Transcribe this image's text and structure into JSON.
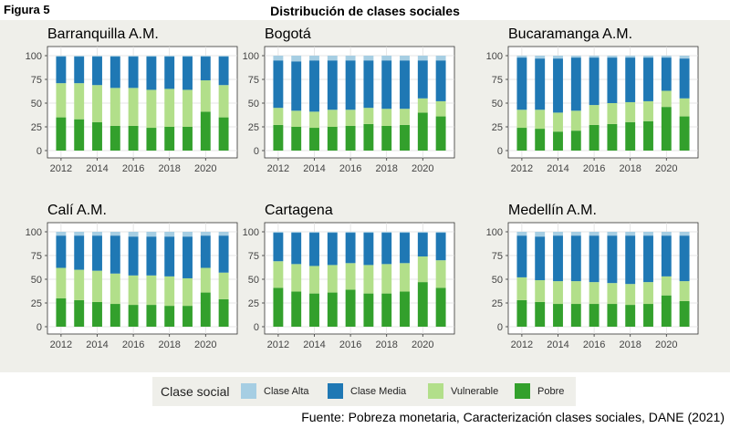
{
  "figure_label": "Figura 5",
  "title": "Distribución de clases sociales",
  "source": "Fuente: Pobreza monetaria, Caracterización clases sociales, DANE (2021)",
  "legend": {
    "title": "Clase social",
    "items": [
      {
        "label": "Clase Alta",
        "color": "#a6cee3"
      },
      {
        "label": "Clase Media",
        "color": "#1f78b4"
      },
      {
        "label": "Vulnerable",
        "color": "#b2df8a"
      },
      {
        "label": "Pobre",
        "color": "#33a02c"
      }
    ]
  },
  "chart_data": [
    {
      "type": "bar",
      "stacked": true,
      "title": "Barranquilla A.M.",
      "x": [
        2012,
        2013,
        2014,
        2015,
        2016,
        2017,
        2018,
        2019,
        2020,
        2021
      ],
      "xticks": [
        "2012",
        "2014",
        "2016",
        "2018",
        "2020"
      ],
      "yticks": [
        "0",
        "25",
        "50",
        "75",
        "100"
      ],
      "ylim": [
        0,
        100
      ],
      "series": [
        {
          "name": "Pobre",
          "values": [
            35,
            33,
            30,
            26,
            26,
            24,
            25,
            25,
            41,
            35
          ]
        },
        {
          "name": "Vulnerable",
          "values": [
            36,
            38,
            39,
            40,
            40,
            40,
            40,
            39,
            33,
            34
          ]
        },
        {
          "name": "Clase Media",
          "values": [
            28,
            28,
            30,
            33,
            33,
            35,
            34,
            35,
            25,
            30
          ]
        },
        {
          "name": "Clase Alta",
          "values": [
            1,
            1,
            1,
            1,
            1,
            1,
            1,
            1,
            1,
            1
          ]
        }
      ]
    },
    {
      "type": "bar",
      "stacked": true,
      "title": "Bogotá",
      "x": [
        2012,
        2013,
        2014,
        2015,
        2016,
        2017,
        2018,
        2019,
        2020,
        2021
      ],
      "xticks": [
        "2012",
        "2014",
        "2016",
        "2018",
        "2020"
      ],
      "yticks": [
        "0",
        "25",
        "50",
        "75",
        "100"
      ],
      "ylim": [
        0,
        100
      ],
      "series": [
        {
          "name": "Pobre",
          "values": [
            27,
            25,
            24,
            25,
            26,
            28,
            26,
            27,
            40,
            36
          ]
        },
        {
          "name": "Vulnerable",
          "values": [
            18,
            17,
            17,
            18,
            17,
            17,
            18,
            17,
            15,
            16
          ]
        },
        {
          "name": "Clase Media",
          "values": [
            50,
            52,
            54,
            52,
            52,
            50,
            51,
            51,
            40,
            43
          ]
        },
        {
          "name": "Clase Alta",
          "values": [
            5,
            6,
            5,
            5,
            5,
            5,
            5,
            5,
            5,
            5
          ]
        }
      ]
    },
    {
      "type": "bar",
      "stacked": true,
      "title": "Bucaramanga A.M.",
      "x": [
        2012,
        2013,
        2014,
        2015,
        2016,
        2017,
        2018,
        2019,
        2020,
        2021
      ],
      "xticks": [
        "2012",
        "2014",
        "2016",
        "2018",
        "2020"
      ],
      "yticks": [
        "0",
        "25",
        "50",
        "75",
        "100"
      ],
      "ylim": [
        0,
        100
      ],
      "series": [
        {
          "name": "Pobre",
          "values": [
            24,
            23,
            20,
            21,
            27,
            28,
            30,
            31,
            46,
            36
          ]
        },
        {
          "name": "Vulnerable",
          "values": [
            19,
            20,
            20,
            21,
            21,
            22,
            21,
            21,
            17,
            19
          ]
        },
        {
          "name": "Clase Media",
          "values": [
            55,
            54,
            57,
            56,
            50,
            48,
            47,
            46,
            35,
            42
          ]
        },
        {
          "name": "Clase Alta",
          "values": [
            2,
            3,
            3,
            2,
            2,
            2,
            2,
            2,
            2,
            3
          ]
        }
      ]
    },
    {
      "type": "bar",
      "stacked": true,
      "title": "Calí A.M.",
      "x": [
        2012,
        2013,
        2014,
        2015,
        2016,
        2017,
        2018,
        2019,
        2020,
        2021
      ],
      "xticks": [
        "2012",
        "2014",
        "2016",
        "2018",
        "2020"
      ],
      "yticks": [
        "0",
        "25",
        "50",
        "75",
        "100"
      ],
      "ylim": [
        0,
        100
      ],
      "series": [
        {
          "name": "Pobre",
          "values": [
            30,
            28,
            26,
            24,
            23,
            23,
            22,
            22,
            36,
            29
          ]
        },
        {
          "name": "Vulnerable",
          "values": [
            32,
            32,
            33,
            32,
            31,
            31,
            31,
            29,
            26,
            28
          ]
        },
        {
          "name": "Clase Media",
          "values": [
            34,
            36,
            37,
            40,
            41,
            41,
            42,
            44,
            34,
            39
          ]
        },
        {
          "name": "Clase Alta",
          "values": [
            4,
            4,
            4,
            4,
            5,
            5,
            5,
            5,
            4,
            4
          ]
        }
      ]
    },
    {
      "type": "bar",
      "stacked": true,
      "title": "Cartagena",
      "x": [
        2012,
        2013,
        2014,
        2015,
        2016,
        2017,
        2018,
        2019,
        2020,
        2021
      ],
      "xticks": [
        "2012",
        "2014",
        "2016",
        "2018",
        "2020"
      ],
      "yticks": [
        "0",
        "25",
        "50",
        "75",
        "100"
      ],
      "ylim": [
        0,
        100
      ],
      "series": [
        {
          "name": "Pobre",
          "values": [
            41,
            37,
            35,
            36,
            39,
            35,
            35,
            37,
            47,
            41
          ]
        },
        {
          "name": "Vulnerable",
          "values": [
            28,
            29,
            29,
            29,
            28,
            30,
            31,
            30,
            27,
            29
          ]
        },
        {
          "name": "Clase Media",
          "values": [
            30,
            33,
            35,
            34,
            32,
            34,
            33,
            32,
            25,
            29
          ]
        },
        {
          "name": "Clase Alta",
          "values": [
            1,
            1,
            1,
            1,
            1,
            1,
            1,
            1,
            1,
            1
          ]
        }
      ]
    },
    {
      "type": "bar",
      "stacked": true,
      "title": "Medellín A.M.",
      "x": [
        2012,
        2013,
        2014,
        2015,
        2016,
        2017,
        2018,
        2019,
        2020,
        2021
      ],
      "xticks": [
        "2012",
        "2014",
        "2016",
        "2018",
        "2020"
      ],
      "yticks": [
        "0",
        "25",
        "50",
        "75",
        "100"
      ],
      "ylim": [
        0,
        100
      ],
      "series": [
        {
          "name": "Pobre",
          "values": [
            28,
            26,
            24,
            24,
            24,
            24,
            23,
            24,
            33,
            27
          ]
        },
        {
          "name": "Vulnerable",
          "values": [
            24,
            23,
            24,
            24,
            23,
            22,
            22,
            23,
            20,
            21
          ]
        },
        {
          "name": "Clase Media",
          "values": [
            44,
            46,
            48,
            48,
            49,
            50,
            51,
            49,
            43,
            48
          ]
        },
        {
          "name": "Clase Alta",
          "values": [
            4,
            5,
            4,
            4,
            4,
            4,
            4,
            4,
            4,
            4
          ]
        }
      ]
    }
  ]
}
